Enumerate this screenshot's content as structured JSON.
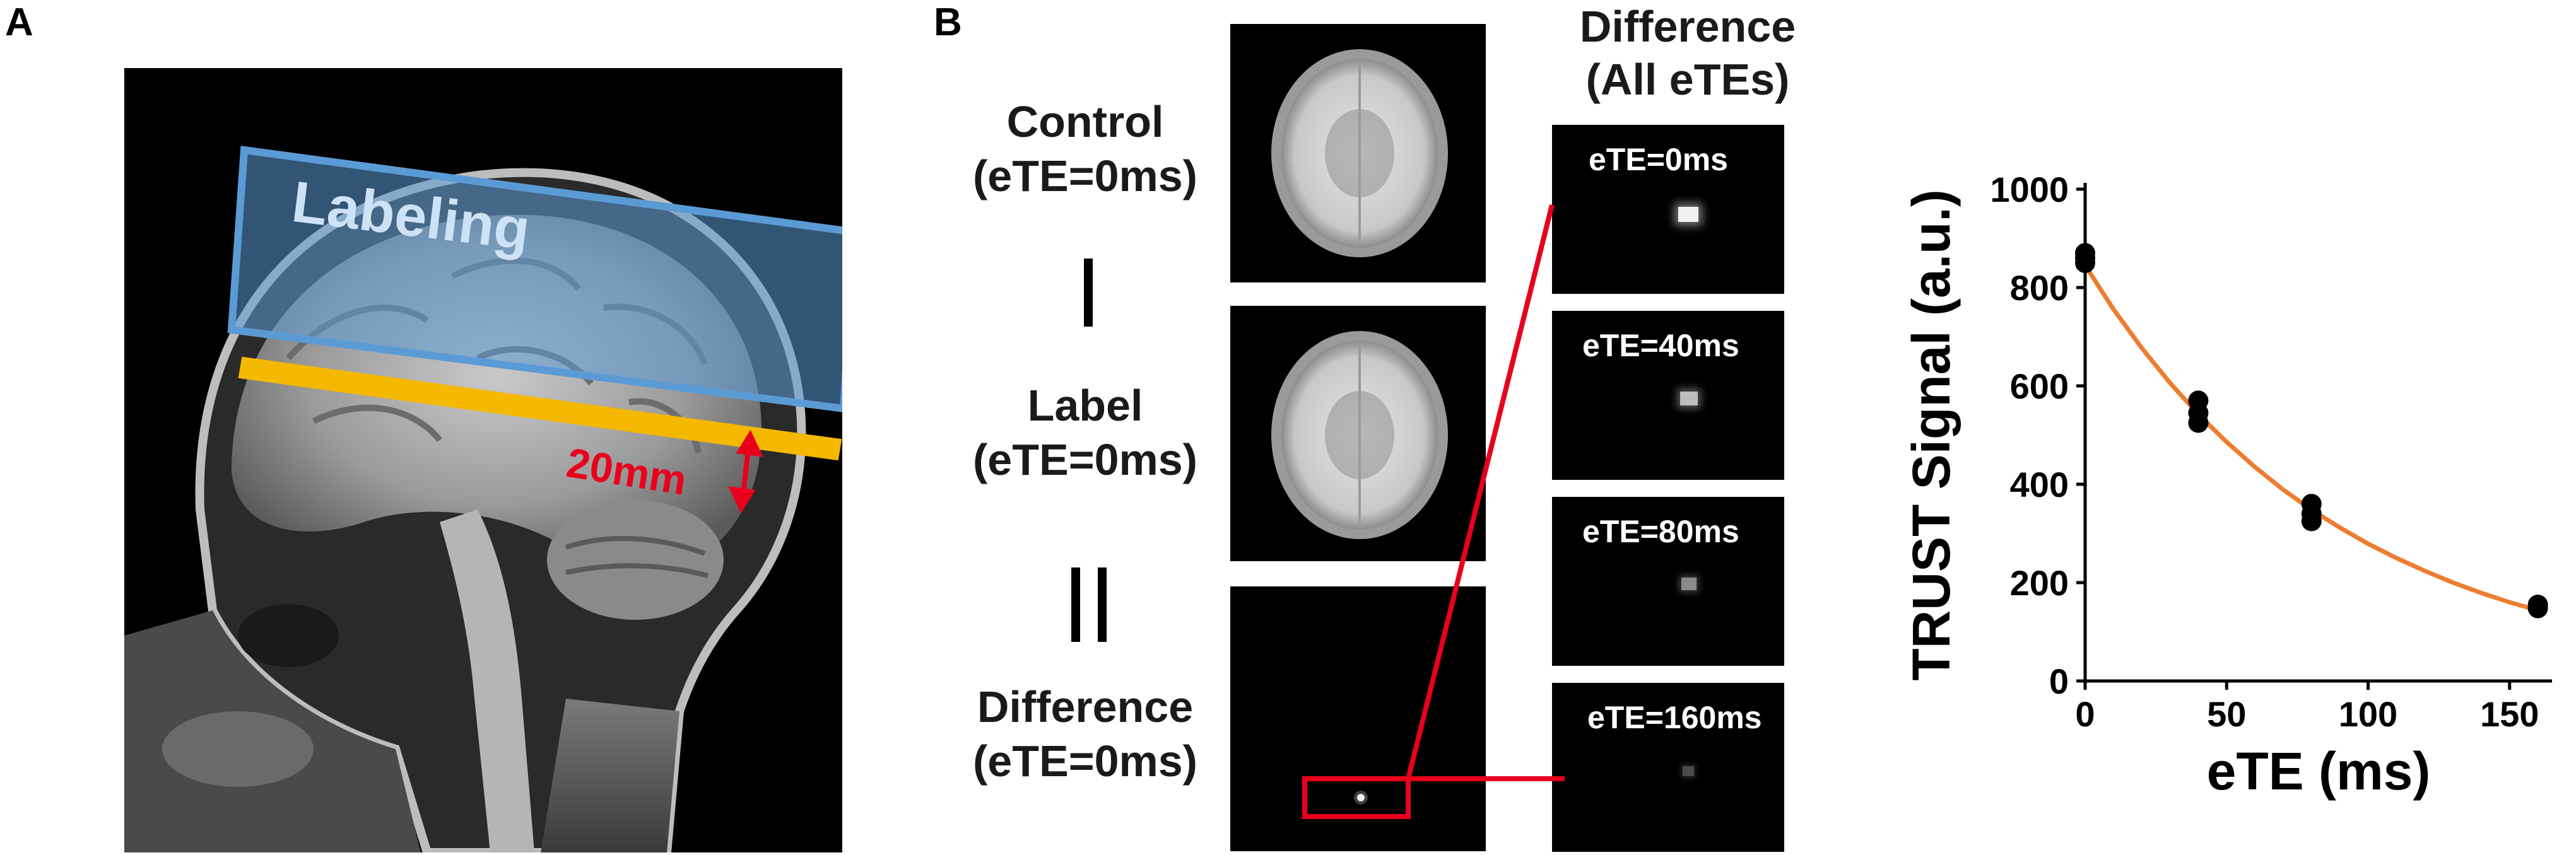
{
  "panels": {
    "a_label": "A",
    "b_label": "B"
  },
  "panel_a": {
    "labeling_text": "Labeling",
    "distance_text": "20mm",
    "labeling_color": "#5b9bd5",
    "slab_color": "#f5b800",
    "marker_color": "#e8001c"
  },
  "panel_b": {
    "header_line1": "Difference",
    "header_line2": "(All eTEs)",
    "rows": [
      {
        "line1": "Control",
        "line2": "(eTE=0ms)"
      },
      {
        "line1": "Label",
        "line2": "(eTE=0ms)"
      },
      {
        "line1": "Difference",
        "line2": "(eTE=0ms)"
      }
    ],
    "operators": {
      "minus": "|",
      "equals": "||"
    },
    "ete_labels": [
      "eTE=0ms",
      "eTE=40ms",
      "eTE=80ms",
      "eTE=160ms"
    ],
    "zoom_color": "#e8001c"
  },
  "chart_data": {
    "type": "scatter",
    "xlabel": "eTE (ms)",
    "ylabel": "TRUST Signal (a.u.)",
    "xlim": [
      0,
      165
    ],
    "ylim": [
      0,
      1000
    ],
    "xticks": [
      0,
      50,
      100,
      150
    ],
    "yticks": [
      0,
      200,
      400,
      600,
      800,
      1000
    ],
    "grid": false,
    "series": [
      {
        "type": "scatter",
        "color": "#000000",
        "x": [
          0,
          0,
          0,
          40,
          40,
          40,
          80,
          80,
          80,
          160,
          160
        ],
        "y": [
          870,
          860,
          850,
          570,
          545,
          525,
          360,
          340,
          325,
          155,
          148
        ]
      },
      {
        "type": "line",
        "color": "#ed7d31",
        "x": [
          0,
          10,
          20,
          30,
          40,
          50,
          60,
          70,
          80,
          90,
          100,
          110,
          120,
          130,
          140,
          150,
          160
        ],
        "y": [
          845,
          756,
          677,
          606,
          542,
          486,
          435,
          389,
          348,
          312,
          279,
          250,
          224,
          200,
          179,
          160,
          144
        ]
      }
    ]
  }
}
